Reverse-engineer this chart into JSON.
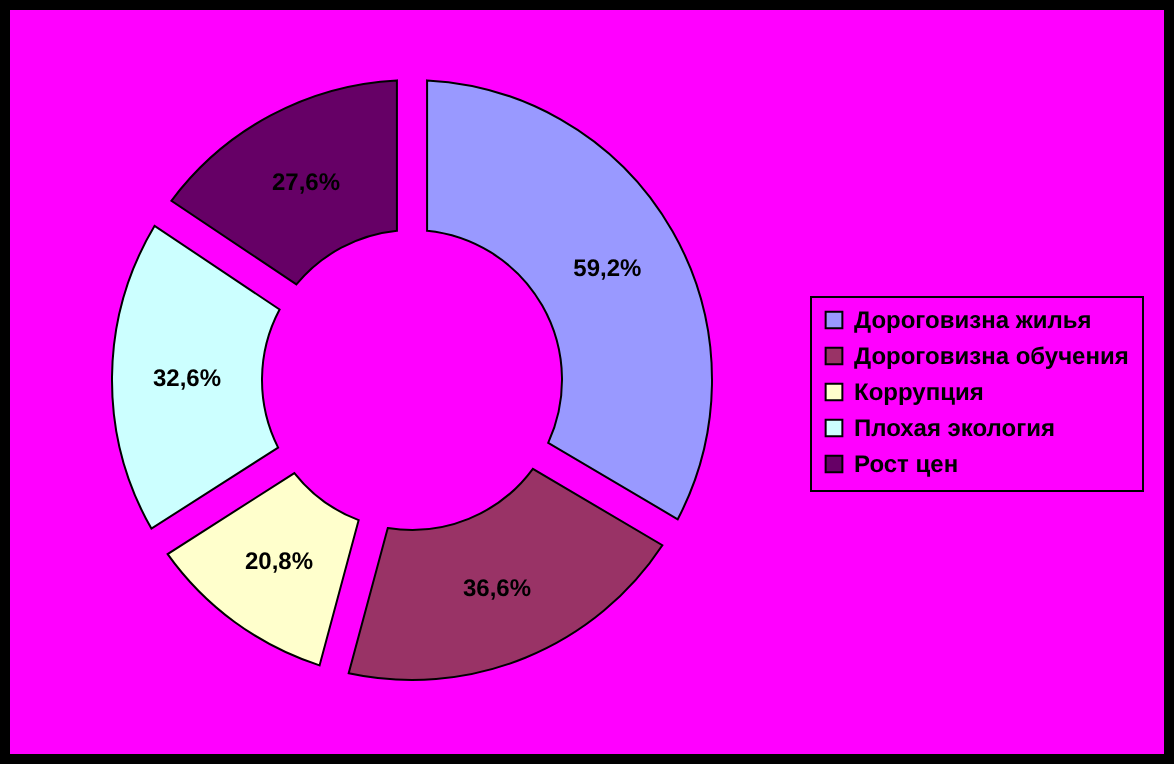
{
  "chart_data": {
    "type": "donut",
    "categories": [
      "Дороговизна жилья",
      "Дороговизна обучения",
      "Коррупция",
      "Плохая экология",
      "Рост цен"
    ],
    "values": [
      59.2,
      36.6,
      20.8,
      32.6,
      27.6
    ],
    "value_labels": [
      "59,2%",
      "36,6%",
      "20,8%",
      "32,6%",
      "27,6%"
    ],
    "colors": [
      "#9999ff",
      "#993366",
      "#ffffcc",
      "#ccffff",
      "#660066"
    ],
    "legend": "right"
  }
}
